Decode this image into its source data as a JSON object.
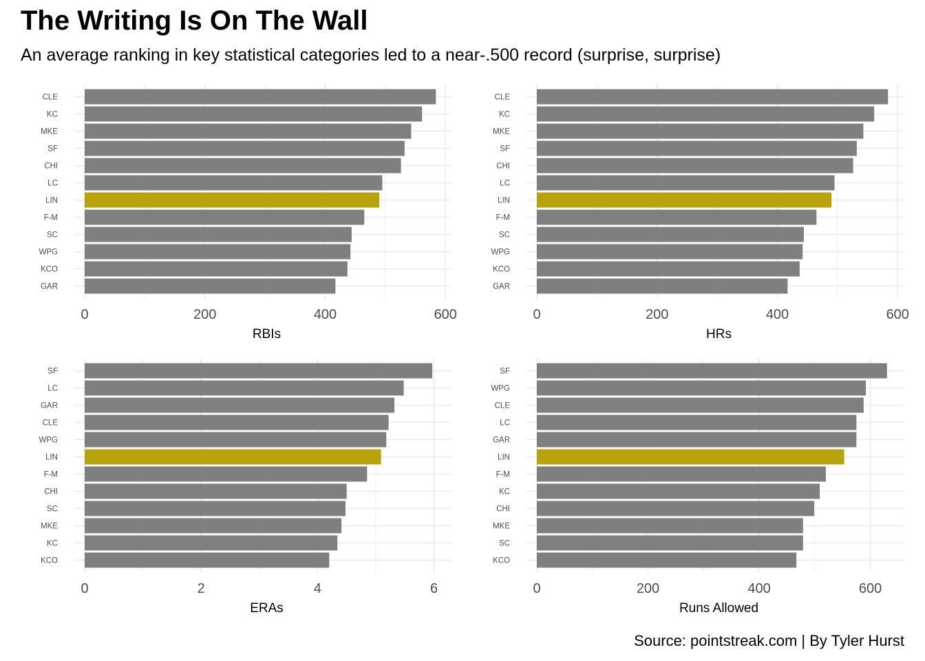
{
  "title": "The Writing Is On The Wall",
  "subtitle": "An average ranking in key statistical categories led to a near-.500 record (surprise, surprise)",
  "caption": "Source: pointstreak.com | By Tyler Hurst",
  "colors": {
    "bar": "#7f7f7f",
    "highlight": "#b8a20d",
    "grid": "#ebebeb",
    "tick_label": "#4d4d4d"
  },
  "highlight_team": "LIN",
  "chart_data": [
    {
      "type": "bar",
      "orientation": "horizontal",
      "xlabel": "RBIs",
      "categories": [
        "CLE",
        "KC",
        "MKE",
        "SF",
        "CHI",
        "LC",
        "LIN",
        "F-M",
        "SC",
        "WPG",
        "KCO",
        "GAR"
      ],
      "values": [
        584,
        561,
        543,
        532,
        526,
        495,
        490,
        465,
        444,
        442,
        437,
        417
      ],
      "xlim": [
        0,
        610
      ],
      "xticks": [
        0,
        200,
        400,
        600
      ],
      "grid": true
    },
    {
      "type": "bar",
      "orientation": "horizontal",
      "xlabel": "HRs",
      "categories": [
        "CLE",
        "KC",
        "MKE",
        "SF",
        "CHI",
        "LC",
        "LIN",
        "F-M",
        "SC",
        "WPG",
        "KCO",
        "GAR"
      ],
      "values": [
        584,
        561,
        543,
        532,
        526,
        495,
        490,
        465,
        444,
        442,
        437,
        417
      ],
      "xlim": [
        0,
        610
      ],
      "xticks": [
        0,
        200,
        400,
        600
      ],
      "grid": true
    },
    {
      "type": "bar",
      "orientation": "horizontal",
      "xlabel": "ERAs",
      "categories": [
        "SF",
        "LC",
        "GAR",
        "CLE",
        "WPG",
        "LIN",
        "F-M",
        "CHI",
        "SC",
        "MKE",
        "KC",
        "KCO"
      ],
      "values": [
        5.97,
        5.48,
        5.32,
        5.22,
        5.18,
        5.09,
        4.85,
        4.5,
        4.48,
        4.41,
        4.34,
        4.2
      ],
      "xlim": [
        0,
        6.3
      ],
      "xticks": [
        0,
        2,
        4,
        6
      ],
      "grid": true
    },
    {
      "type": "bar",
      "orientation": "horizontal",
      "xlabel": "Runs Allowed",
      "categories": [
        "SF",
        "WPG",
        "CLE",
        "LC",
        "GAR",
        "LIN",
        "F-M",
        "KC",
        "CHI",
        "MKE",
        "SC",
        "KCO"
      ],
      "values": [
        630,
        592,
        588,
        575,
        575,
        553,
        520,
        509,
        499,
        479,
        479,
        467
      ],
      "xlim": [
        0,
        660
      ],
      "xticks": [
        0,
        200,
        400,
        600
      ],
      "grid": true
    }
  ]
}
